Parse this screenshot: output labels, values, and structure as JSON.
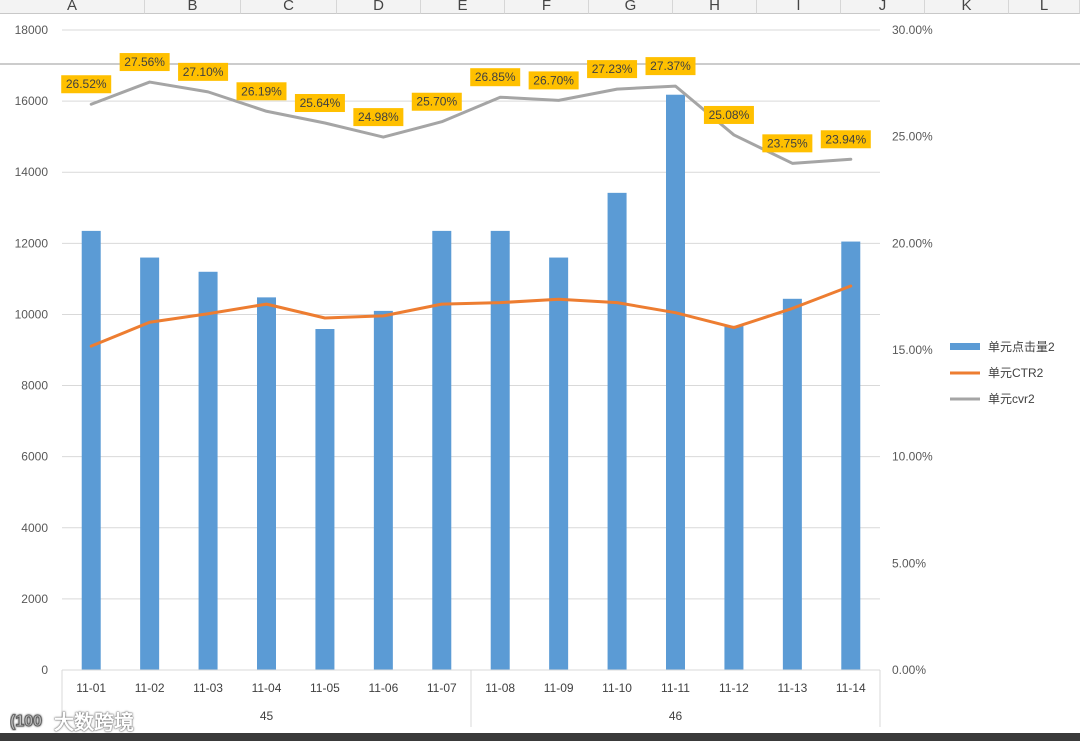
{
  "sheet": {
    "column_headers": [
      "A",
      "B",
      "C",
      "D",
      "E",
      "F",
      "G",
      "H",
      "I",
      "J",
      "K",
      "L"
    ]
  },
  "chart_data": {
    "type": "bar",
    "combo": "bar + line (secondary axis)",
    "categories": [
      "11-01",
      "11-02",
      "11-03",
      "11-04",
      "11-05",
      "11-06",
      "11-07",
      "11-08",
      "11-09",
      "11-10",
      "11-11",
      "11-12",
      "11-13",
      "11-14"
    ],
    "category_groups": [
      {
        "label": "45",
        "start": 0,
        "end": 6
      },
      {
        "label": "46",
        "start": 7,
        "end": 13
      }
    ],
    "series": [
      {
        "name": "单元点击量2",
        "type": "bar",
        "axis": "primary",
        "color": "#5b9bd5",
        "values": [
          12350,
          11600,
          11200,
          10480,
          9590,
          10100,
          12350,
          12350,
          11600,
          13420,
          16180,
          9680,
          10440,
          12050
        ]
      },
      {
        "name": "单元CTR2",
        "type": "line",
        "axis": "secondary",
        "color": "#ed7d31",
        "values": [
          0.1518,
          0.163,
          0.167,
          0.1715,
          0.165,
          0.166,
          0.1715,
          0.1722,
          0.1738,
          0.1722,
          0.1675,
          0.1605,
          0.1695,
          0.18
        ]
      },
      {
        "name": "单元cvr2",
        "type": "line",
        "axis": "secondary",
        "color": "#a5a5a5",
        "values": [
          0.2652,
          0.2756,
          0.271,
          0.2619,
          0.2564,
          0.2498,
          0.257,
          0.2685,
          0.267,
          0.2723,
          0.2737,
          0.2508,
          0.2375,
          0.2394
        ],
        "data_labels": [
          "26.52%",
          "27.56%",
          "27.10%",
          "26.19%",
          "25.64%",
          "24.98%",
          "25.70%",
          "26.85%",
          "26.70%",
          "27.23%",
          "27.37%",
          "25.08%",
          "23.75%",
          "23.94%"
        ],
        "label_color": "#ffc000"
      }
    ],
    "y_primary": {
      "min": 0,
      "max": 18000,
      "step": 2000,
      "ticks": [
        "0",
        "2000",
        "4000",
        "6000",
        "8000",
        "10000",
        "12000",
        "14000",
        "16000",
        "18000"
      ]
    },
    "y_secondary": {
      "min": 0,
      "max": 0.3,
      "step": 0.05,
      "ticks": [
        "0.00%",
        "5.00%",
        "10.00%",
        "15.00%",
        "20.00%",
        "25.00%",
        "30.00%"
      ]
    },
    "grid": true,
    "legend": "right"
  },
  "watermark": {
    "text": "大数跨境"
  }
}
